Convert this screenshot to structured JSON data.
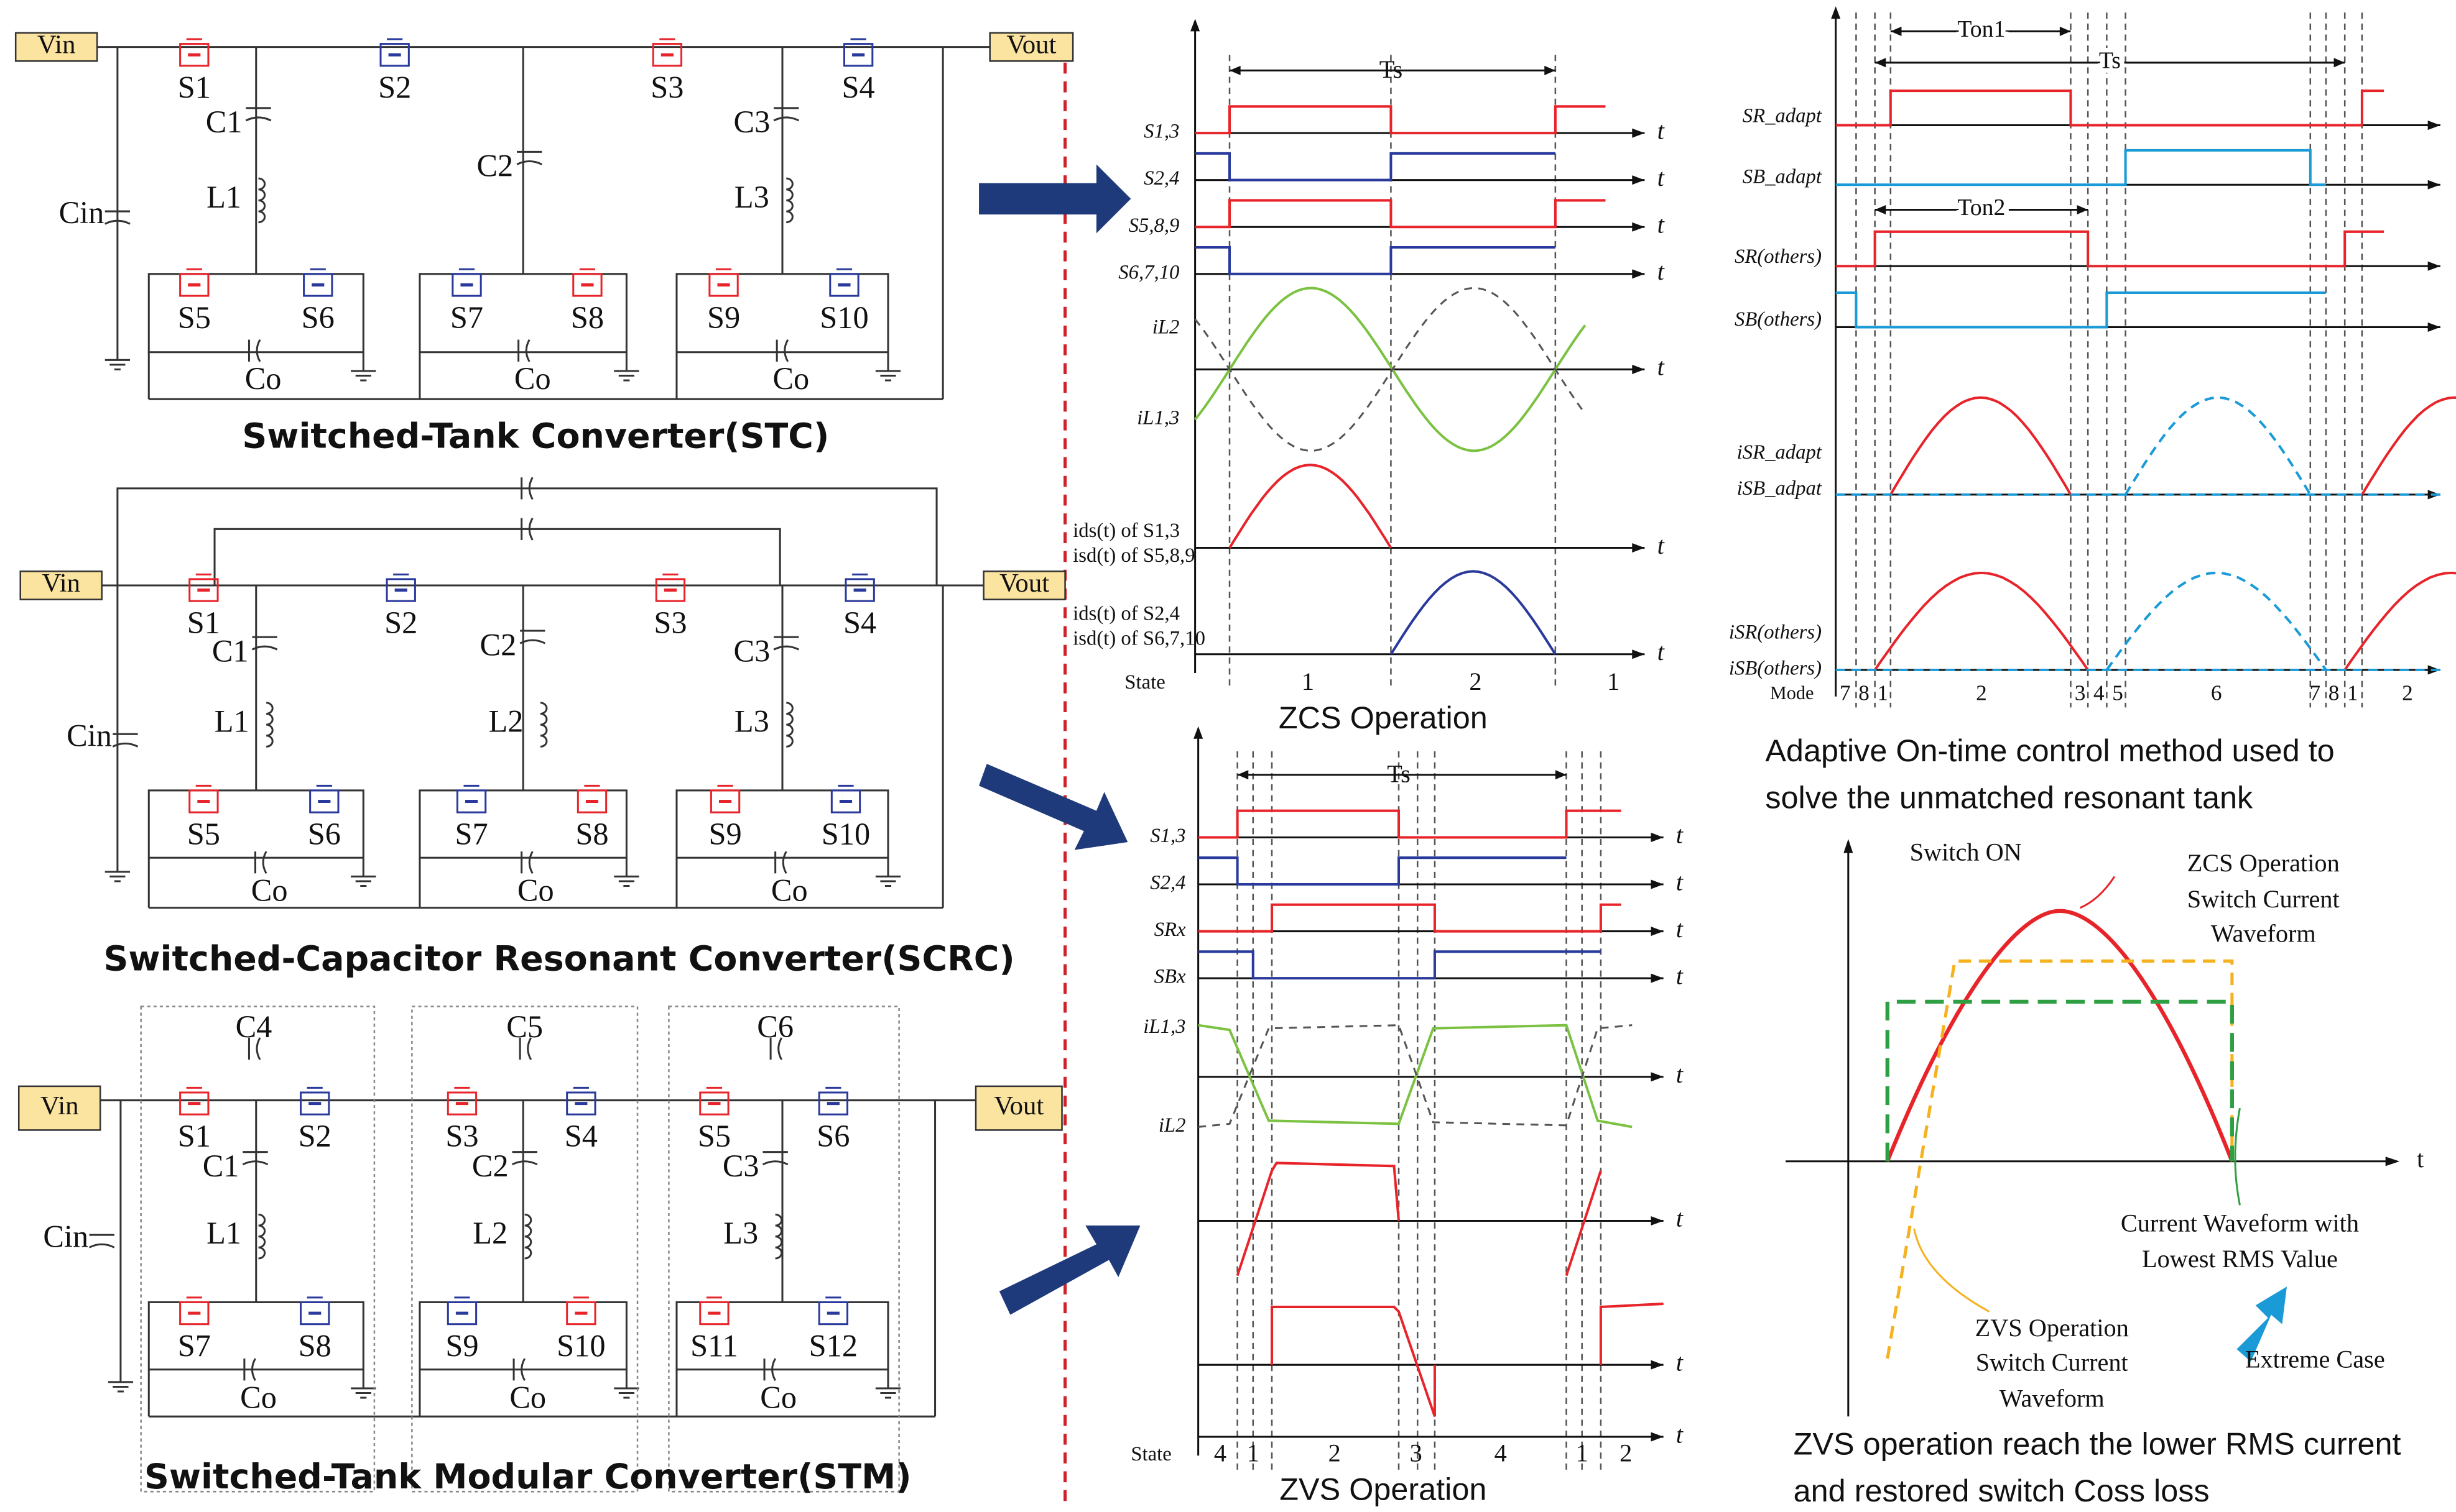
{
  "circuits": [
    {
      "title": "Switched-Tank Converter(STC)",
      "vin": "Vin",
      "vout": "Vout",
      "components": [
        "S1",
        "S2",
        "S3",
        "S4",
        "C1",
        "C2",
        "C3",
        "L1",
        "L3",
        "Cin",
        "S5",
        "S6",
        "S7",
        "S8",
        "S9",
        "S10",
        "Co",
        "Co",
        "Co"
      ]
    },
    {
      "title": "Switched-Capacitor Resonant Converter(SCRC)",
      "vin": "Vin",
      "vout": "Vout",
      "components": [
        "S1",
        "S2",
        "S3",
        "S4",
        "C1",
        "C2",
        "C3",
        "L1",
        "L2",
        "L3",
        "Cin",
        "S5",
        "S6",
        "S7",
        "S8",
        "S9",
        "S10",
        "Co",
        "Co",
        "Co"
      ]
    },
    {
      "title": "Switched-Tank Modular Converter(STM)",
      "vin": "Vin",
      "vout": "Vout",
      "components": [
        "C4",
        "C5",
        "C6",
        "S1",
        "S2",
        "S3",
        "S4",
        "S5",
        "S6",
        "C1",
        "C2",
        "C3",
        "L1",
        "L2",
        "L3",
        "Cin",
        "S7",
        "S8",
        "S9",
        "S10",
        "S11",
        "S12",
        "Co",
        "Co",
        "Co"
      ]
    }
  ],
  "zcs": {
    "caption": "ZCS Operation",
    "period": "Ts",
    "axis": "t",
    "signals": [
      "S1,3",
      "S2,4",
      "S5,8,9",
      "S6,7,10",
      "iL2",
      "iL1,3"
    ],
    "current_labels": [
      [
        "ids(t) of S1,3",
        "isd(t) of S5,8,9"
      ],
      [
        "ids(t) of S2,4",
        "isd(t) of S6,7,10"
      ]
    ],
    "state_label": "State",
    "states": [
      "1",
      "2",
      "1"
    ]
  },
  "zvs": {
    "caption": "ZVS Operation",
    "period": "Ts",
    "axis": "t",
    "signals": [
      "S1,3",
      "S2,4",
      "SRx",
      "SBx",
      "iL1,3",
      "iL2"
    ],
    "state_label": "State",
    "states": [
      "4",
      "1",
      "2",
      "3",
      "4",
      "1",
      "2"
    ]
  },
  "adaptive": {
    "caption": [
      "Adaptive On-time control method used to",
      "solve the unmatched resonant tank"
    ],
    "on_time_1": "Ton1",
    "period": "Ts",
    "on_time_2": "Ton2",
    "signals": [
      "SR_adapt",
      "SB_adapt",
      "SR(others)",
      "SB(others)",
      "iSR_adapt",
      "iSB_adpat",
      "iSR(others)",
      "iSB(others)"
    ],
    "mode_label": "Mode",
    "modes": [
      "7",
      "8",
      "1",
      "2",
      "3",
      "4",
      "5",
      "6",
      "7",
      "8",
      "1",
      "2"
    ]
  },
  "comparison": {
    "switch_on": "Switch ON",
    "axis": "t",
    "zcs_label": [
      "ZCS Operation",
      "Switch Current",
      "Waveform"
    ],
    "rms_label": [
      "Current Waveform with",
      "Lowest RMS Value"
    ],
    "zvs_label": [
      "ZVS Operation",
      "Switch Current",
      "Waveform"
    ],
    "extreme": "Extreme Case",
    "caption": [
      "ZVS operation reach the lower RMS current",
      "and restored switch Coss loss"
    ]
  }
}
